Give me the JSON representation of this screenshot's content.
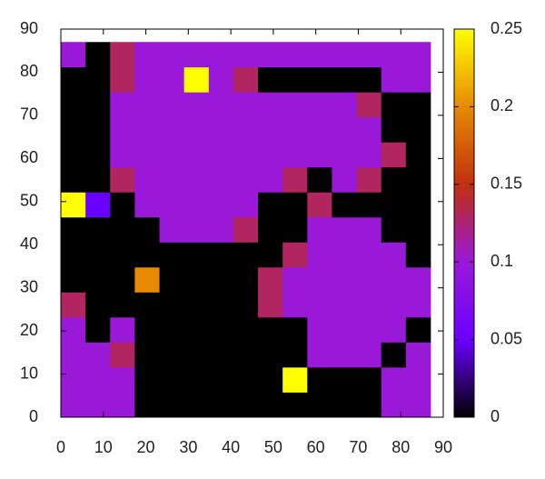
{
  "chart_data": {
    "type": "heatmap",
    "x": [
      2.9,
      8.7,
      14.5,
      20.3,
      26.1,
      31.9,
      37.7,
      43.5,
      49.3,
      55.1,
      60.9,
      66.7,
      72.5,
      78.3,
      84.1
    ],
    "y": [
      2.9,
      8.7,
      14.5,
      20.3,
      26.1,
      31.9,
      37.7,
      43.5,
      49.3,
      55.1,
      60.9,
      66.7,
      72.5,
      78.3,
      84.1
    ],
    "z": [
      [
        0.1,
        0.1,
        0.1,
        0,
        0,
        0,
        0,
        0,
        0,
        0,
        0,
        0,
        0,
        0.1,
        0.1
      ],
      [
        0.1,
        0.1,
        0.1,
        0,
        0,
        0,
        0,
        0,
        0,
        0.25,
        0,
        0,
        0,
        0.1,
        0.1
      ],
      [
        0.1,
        0.1,
        0.13,
        0,
        0,
        0,
        0,
        0,
        0,
        0,
        0.1,
        0.1,
        0.1,
        0,
        0.1
      ],
      [
        0.1,
        0,
        0.1,
        0,
        0,
        0,
        0,
        0,
        0,
        0,
        0.1,
        0.1,
        0.1,
        0.1,
        0
      ],
      [
        0.13,
        0,
        0,
        0,
        0,
        0,
        0,
        0,
        0.13,
        0.1,
        0.1,
        0.1,
        0.1,
        0.1,
        0.1
      ],
      [
        0,
        0,
        0,
        0.2,
        0,
        0,
        0,
        0,
        0.13,
        0.1,
        0.1,
        0.1,
        0.1,
        0.1,
        0.1
      ],
      [
        0,
        0,
        0,
        0,
        0,
        0,
        0,
        0,
        0,
        0.13,
        0.1,
        0.1,
        0.1,
        0.1,
        0
      ],
      [
        0,
        0,
        0,
        0,
        0.1,
        0.1,
        0.1,
        0.13,
        0,
        0,
        0.1,
        0.1,
        0.1,
        0,
        0
      ],
      [
        0.25,
        0.05,
        0,
        0.1,
        0.1,
        0.1,
        0.1,
        0.1,
        0,
        0,
        0.13,
        0,
        0,
        0,
        0
      ],
      [
        0,
        0,
        0.13,
        0.1,
        0.1,
        0.1,
        0.1,
        0.1,
        0.1,
        0.13,
        0,
        0.1,
        0.13,
        0,
        0
      ],
      [
        0,
        0,
        0.1,
        0.1,
        0.1,
        0.1,
        0.1,
        0.1,
        0.1,
        0.1,
        0.1,
        0.1,
        0.1,
        0.13,
        0
      ],
      [
        0,
        0,
        0.1,
        0.1,
        0.1,
        0.1,
        0.1,
        0.1,
        0.1,
        0.1,
        0.1,
        0.1,
        0.1,
        0,
        0
      ],
      [
        0,
        0,
        0.1,
        0.1,
        0.1,
        0.1,
        0.1,
        0.1,
        0.1,
        0.1,
        0.1,
        0.1,
        0.13,
        0,
        0
      ],
      [
        0,
        0,
        0.13,
        0.1,
        0.1,
        0.25,
        0.1,
        0.13,
        0,
        0,
        0,
        0,
        0,
        0.1,
        0.1
      ],
      [
        0.1,
        0,
        0.13,
        0.1,
        0.1,
        0.1,
        0.1,
        0.1,
        0.1,
        0.1,
        0.1,
        0.1,
        0.1,
        0.1,
        0.1
      ]
    ],
    "xlim": [
      0,
      90
    ],
    "ylim": [
      0,
      90
    ],
    "xticks": [
      0,
      10,
      20,
      30,
      40,
      50,
      60,
      70,
      80,
      90
    ],
    "yticks": [
      0,
      10,
      20,
      30,
      40,
      50,
      60,
      70,
      80,
      90
    ],
    "zlim": [
      0,
      0.25
    ],
    "zticks": [
      0,
      0.05,
      0.1,
      0.15,
      0.2,
      0.25
    ],
    "colormap": [
      "#000000",
      "#6a00ff",
      "#9a18d8",
      "#c03010",
      "#e88a00",
      "#ffff00"
    ]
  }
}
